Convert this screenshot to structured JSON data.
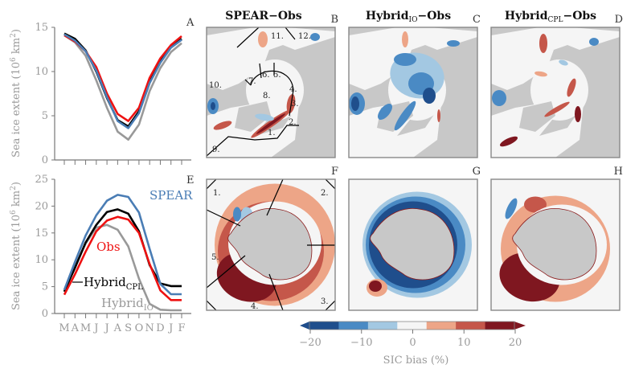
{
  "chart_data": [
    {
      "type": "line",
      "panel": "A",
      "title": "",
      "xlabel": "",
      "ylabel": "Sea ice extent (10^6 km^2)",
      "categories": [
        "M",
        "A",
        "M",
        "J",
        "J",
        "A",
        "S",
        "O",
        "N",
        "D",
        "J",
        "F"
      ],
      "ylim": [
        0,
        15
      ],
      "yticks": [
        0,
        5,
        10,
        15
      ],
      "grid": false,
      "show_xtick_labels": false,
      "series": [
        {
          "name": "Hybrid_IO",
          "color": "#999999",
          "values": [
            14.1,
            13.3,
            11.8,
            9.0,
            5.9,
            3.2,
            2.3,
            4.0,
            7.8,
            10.4,
            12.2,
            13.2
          ]
        },
        {
          "name": "Hybrid_CPL",
          "color": "#000000",
          "values": [
            14.3,
            13.7,
            12.4,
            10.0,
            7.0,
            4.5,
            3.8,
            5.5,
            8.9,
            11.2,
            12.8,
            13.7
          ]
        },
        {
          "name": "Obs",
          "color": "#ee1111",
          "values": [
            14.1,
            13.4,
            12.3,
            10.5,
            7.5,
            5.2,
            4.4,
            5.9,
            9.3,
            11.5,
            13.0,
            14.0
          ]
        },
        {
          "name": "SPEAR",
          "color": "#4a7db5",
          "values": [
            14.2,
            13.5,
            12.3,
            10.1,
            7.1,
            4.4,
            3.6,
            5.3,
            8.7,
            11.0,
            12.7,
            13.6
          ]
        }
      ]
    },
    {
      "type": "line",
      "panel": "E",
      "title": "",
      "xlabel": "",
      "ylabel": "Sea ice extent (10^6 km^2)",
      "categories": [
        "M",
        "A",
        "M",
        "J",
        "J",
        "A",
        "S",
        "O",
        "N",
        "D",
        "J",
        "F"
      ],
      "ylim": [
        0,
        25
      ],
      "yticks": [
        0,
        5,
        10,
        15,
        20,
        25
      ],
      "grid": false,
      "show_xtick_labels": true,
      "series": [
        {
          "name": "Hybrid_IO",
          "color": "#999999",
          "values": [
            4.0,
            8.8,
            13.0,
            16.0,
            16.5,
            15.6,
            12.5,
            6.5,
            1.8,
            0.7,
            0.6,
            0.6
          ]
        },
        {
          "name": "Hybrid_CPL",
          "color": "#000000",
          "values": [
            4.1,
            8.5,
            13.2,
            16.5,
            18.9,
            19.4,
            18.6,
            15.3,
            9.0,
            5.6,
            5.1,
            5.1
          ]
        },
        {
          "name": "Obs",
          "color": "#ee1111",
          "values": [
            3.5,
            7.3,
            11.5,
            15.3,
            17.3,
            18.0,
            17.5,
            15.0,
            9.2,
            4.3,
            2.5,
            2.5
          ]
        },
        {
          "name": "SPEAR",
          "color": "#4a7db5",
          "values": [
            4.4,
            9.6,
            14.5,
            18.3,
            21.0,
            22.1,
            21.7,
            18.8,
            12.0,
            5.5,
            3.6,
            3.6
          ]
        }
      ],
      "annotations": [
        {
          "text": "SPEAR",
          "color": "#4a7db5"
        },
        {
          "text": "Obs",
          "color": "#ee1111"
        },
        {
          "text": "Hybrid",
          "sub": "CPL",
          "color": "#000000"
        },
        {
          "text": "Hybrid",
          "sub": "IO",
          "color": "#999999"
        }
      ]
    }
  ],
  "maps": {
    "titles": [
      {
        "main": "SPEAR",
        "sub": "",
        "suffix": "−Obs"
      },
      {
        "main": "Hybrid",
        "sub": "IO",
        "suffix": "−Obs"
      },
      {
        "main": "Hybrid",
        "sub": "CPL",
        "suffix": "−Obs"
      }
    ],
    "panel_letters": [
      "B",
      "C",
      "D",
      "F",
      "G",
      "H"
    ],
    "arctic_regions": [
      "1.",
      "2.",
      "3.",
      "4.",
      "5.",
      "6.",
      "7.",
      "8.",
      "9.",
      "10.",
      "11.",
      "12."
    ],
    "antarctic_regions": [
      "1.",
      "2.",
      "3.",
      "4.",
      "5."
    ],
    "colors": {
      "land": "#c8c8c8",
      "ocean": "#f5f5f5"
    }
  },
  "panel_letters_line": [
    "A",
    "E"
  ],
  "colorbar": {
    "label": "SIC bias (%)",
    "ticks": [
      "−20",
      "−10",
      "0",
      "10",
      "20"
    ],
    "range": [
      -20,
      20
    ],
    "colors": [
      "#1f4e8c",
      "#4a8ac4",
      "#a3c8e2",
      "#f5f5f5",
      "#eda587",
      "#c5574a",
      "#7f1720"
    ]
  }
}
